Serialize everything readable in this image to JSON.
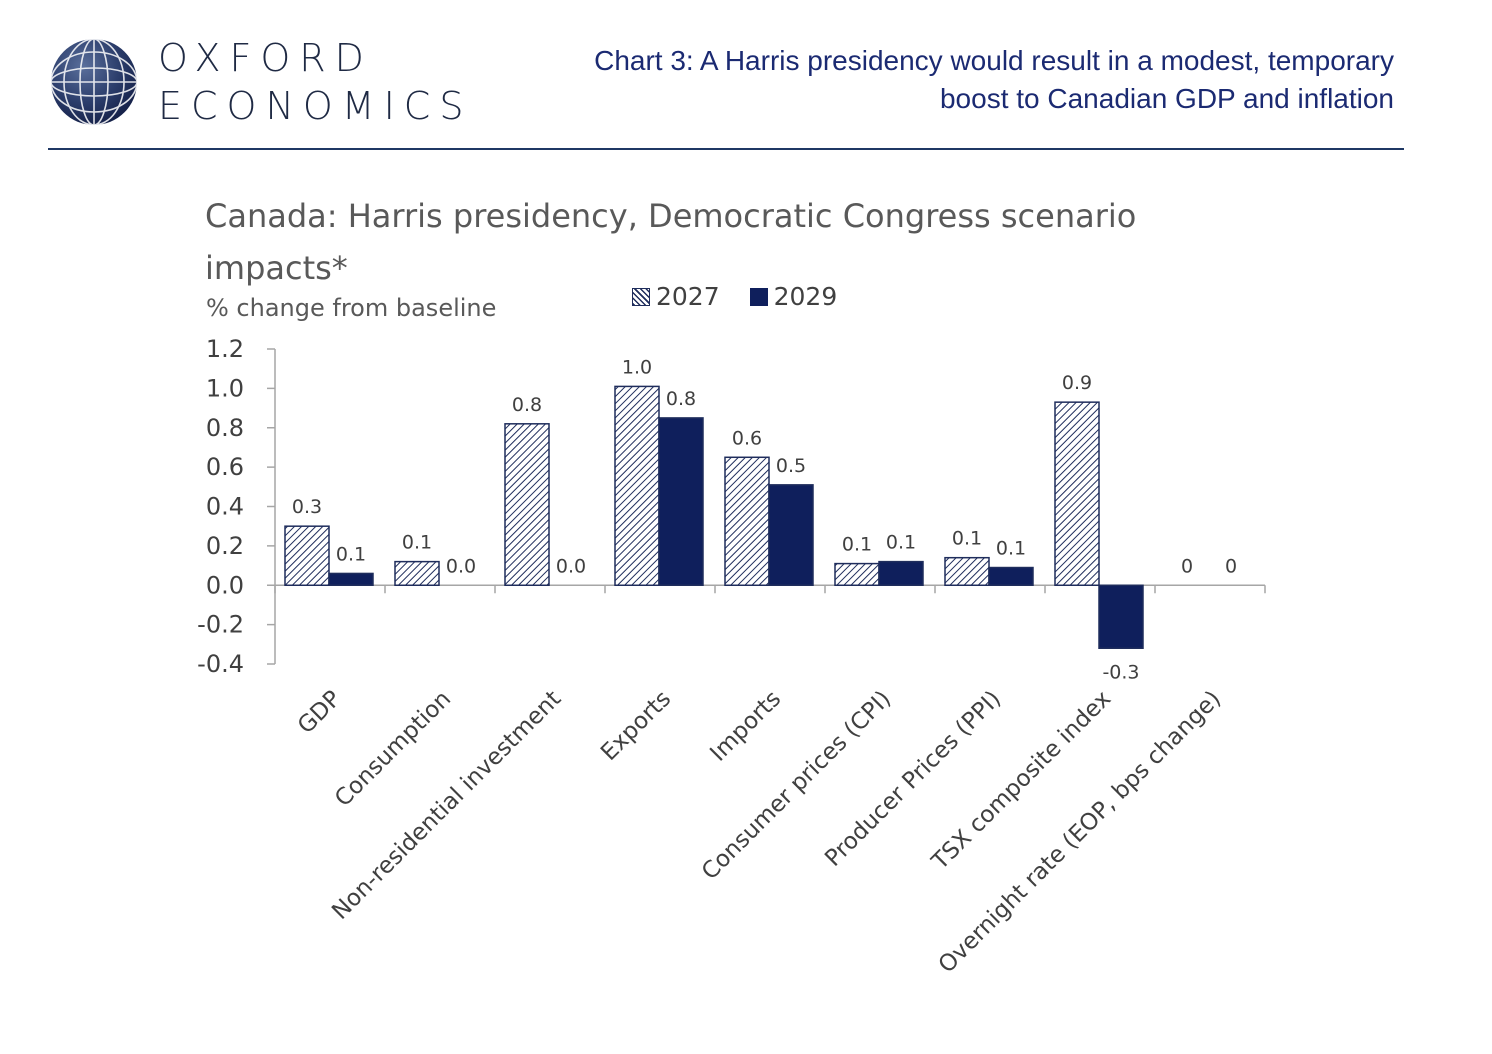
{
  "brand": {
    "line1": "OXFORD",
    "line2": "ECONOMICS"
  },
  "header": {
    "title_line1": "Chart 3: A Harris presidency would result in a modest, temporary",
    "title_line2": "boost to Canadian GDP and inflation"
  },
  "colors": {
    "series2027": "#1f2d5c",
    "series2029": "#0f1f5c",
    "header_text": "#1b2a72",
    "rule": "#1f3864",
    "axis_text": "#404040"
  },
  "chart_data": {
    "type": "bar",
    "title": "Canada: Harris presidency, Democratic Congress scenario impacts*",
    "title_line1": "Canada: Harris presidency, Democratic Congress scenario",
    "title_line2": "impacts*",
    "ylabel": "% change from baseline",
    "ylim": [
      -0.4,
      1.2
    ],
    "yticks": [
      "1.2",
      "1.0",
      "0.8",
      "0.6",
      "0.4",
      "0.2",
      "0.0",
      "-0.2",
      "-0.4"
    ],
    "ytick_values": [
      1.2,
      1.0,
      0.8,
      0.6,
      0.4,
      0.2,
      0.0,
      -0.2,
      -0.4
    ],
    "legend_position": "top",
    "grid": false,
    "categories": [
      "GDP",
      "Consumption",
      "Non-residential investment",
      "Exports",
      "Imports",
      "Consumer prices (CPI)",
      "Producer Prices (PPI)",
      "TSX composite index",
      "Overnight rate (EOP, bps change)"
    ],
    "series": [
      {
        "name": "2027",
        "pattern": "hatched",
        "values": [
          0.3,
          0.12,
          0.82,
          1.01,
          0.65,
          0.11,
          0.14,
          0.93,
          0
        ],
        "labels": [
          "0.3",
          "0.1",
          "0.8",
          "1.0",
          "0.6",
          "0.1",
          "0.1",
          "0.9",
          "0"
        ]
      },
      {
        "name": "2029",
        "pattern": "solid",
        "values": [
          0.06,
          0.0,
          0.0,
          0.85,
          0.51,
          0.12,
          0.09,
          -0.32,
          0
        ],
        "labels": [
          "0.1",
          "0.0",
          "0.0",
          "0.8",
          "0.5",
          "0.1",
          "0.1",
          "-0.3",
          "0"
        ]
      }
    ]
  }
}
